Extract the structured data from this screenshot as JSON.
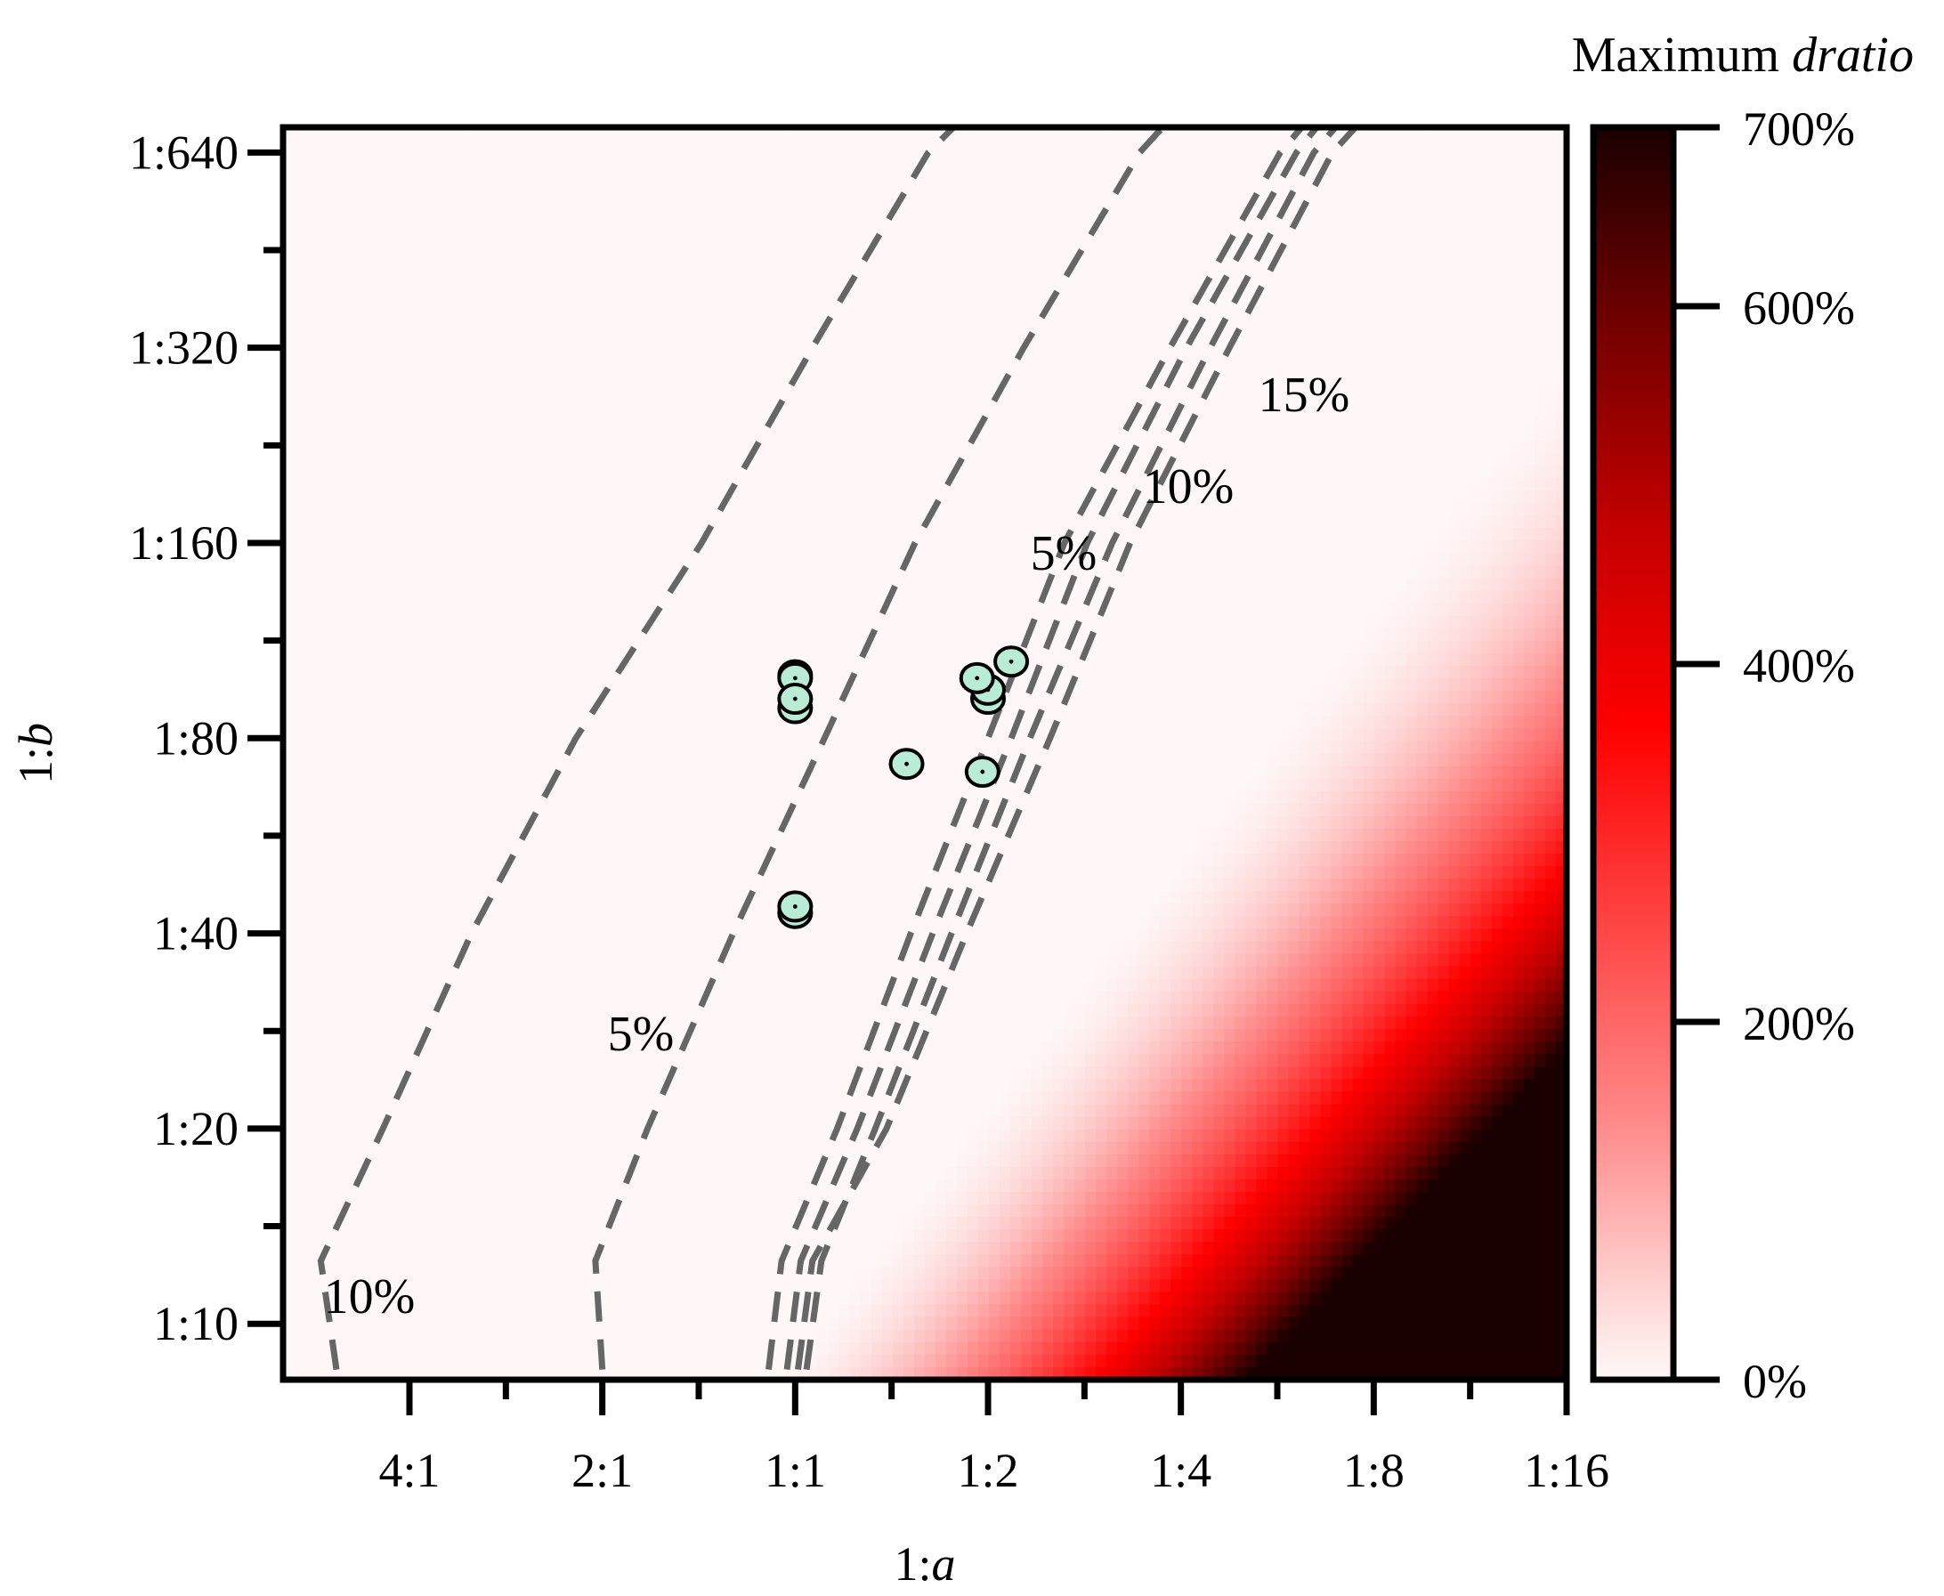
{
  "chart_data": {
    "type": "heatmap",
    "title": "",
    "xlabel": {
      "prefix": "1:",
      "var": "a"
    },
    "ylabel": {
      "prefix": "1:",
      "var": "b"
    },
    "x_scale": "log2",
    "y_scale": "log2",
    "x_ticks": [
      {
        "value": 4,
        "label": "4:1"
      },
      {
        "value": 2,
        "label": "2:1"
      },
      {
        "value": 1,
        "label": "1:1"
      },
      {
        "value": 0.5,
        "label": "1:2"
      },
      {
        "value": 0.25,
        "label": "1:4"
      },
      {
        "value": 0.125,
        "label": "1:8"
      },
      {
        "value": 0.0625,
        "label": "1:16"
      }
    ],
    "y_ticks": [
      {
        "value": 10,
        "label": "1:10"
      },
      {
        "value": 20,
        "label": "1:20"
      },
      {
        "value": 40,
        "label": "1:40"
      },
      {
        "value": 80,
        "label": "1:80"
      },
      {
        "value": 160,
        "label": "1:160"
      },
      {
        "value": 320,
        "label": "1:320"
      },
      {
        "value": 640,
        "label": "1:640"
      }
    ],
    "xlim": [
      6.3,
      0.0625
    ],
    "ylim": [
      8.2,
      700
    ],
    "colorbar": {
      "title_prefix": "Maximum ",
      "title_var": "dratio",
      "range": [
        0,
        700
      ],
      "ticks": [
        {
          "value": 0,
          "label": "0%"
        },
        {
          "value": 200,
          "label": "200%"
        },
        {
          "value": 400,
          "label": "400%"
        },
        {
          "value": 600,
          "label": "600%"
        },
        {
          "value": 700,
          "label": "700%"
        }
      ],
      "colors": [
        "#fff7f7",
        "#ffd9d9",
        "#ff8c8c",
        "#ff0000",
        "#c40000",
        "#6e0000",
        "#1a0000"
      ]
    },
    "contours": [
      {
        "label": "10%",
        "points": [
          [
            5.2,
            8.5
          ],
          [
            5.5,
            12.5
          ],
          [
            4.4,
            20
          ],
          [
            3.2,
            40
          ],
          [
            2.2,
            80
          ],
          [
            1.4,
            160
          ],
          [
            0.94,
            320
          ],
          [
            0.62,
            640
          ],
          [
            0.55,
            720
          ]
        ]
      },
      {
        "label": "5%",
        "points": [
          [
            2.0,
            8.5
          ],
          [
            2.05,
            12.5
          ],
          [
            1.7,
            20
          ],
          [
            1.25,
            40
          ],
          [
            0.9,
            80
          ],
          [
            0.65,
            160
          ],
          [
            0.44,
            320
          ],
          [
            0.29,
            640
          ],
          [
            0.26,
            720
          ]
        ]
      },
      {
        "label": "",
        "points": [
          [
            1.1,
            8.5
          ],
          [
            1.05,
            12.5
          ],
          [
            0.86,
            20
          ],
          [
            0.66,
            40
          ],
          [
            0.5,
            80
          ],
          [
            0.38,
            160
          ],
          [
            0.26,
            320
          ],
          [
            0.175,
            640
          ],
          [
            0.158,
            720
          ]
        ]
      },
      {
        "label": "5%",
        "points": [
          [
            1.03,
            8.5
          ],
          [
            0.98,
            12.5
          ],
          [
            0.8,
            20
          ],
          [
            0.61,
            40
          ],
          [
            0.46,
            80
          ],
          [
            0.35,
            160
          ],
          [
            0.245,
            320
          ],
          [
            0.165,
            640
          ],
          [
            0.15,
            720
          ]
        ]
      },
      {
        "label": "10%",
        "points": [
          [
            0.96,
            8.5
          ],
          [
            0.91,
            12.5
          ],
          [
            0.75,
            20
          ],
          [
            0.57,
            40
          ],
          [
            0.43,
            80
          ],
          [
            0.32,
            160
          ],
          [
            0.225,
            320
          ],
          [
            0.155,
            640
          ],
          [
            0.14,
            720
          ]
        ]
      },
      {
        "label": "15%",
        "points": [
          [
            0.99,
            8.5
          ],
          [
            0.94,
            12.5
          ],
          [
            0.72,
            20
          ],
          [
            0.54,
            40
          ],
          [
            0.4,
            80
          ],
          [
            0.3,
            160
          ],
          [
            0.21,
            320
          ],
          [
            0.145,
            640
          ],
          [
            0.13,
            720
          ]
        ]
      }
    ],
    "points": [
      [
        1.0,
        100
      ],
      [
        1.0,
        99
      ],
      [
        1.0,
        89
      ],
      [
        1.0,
        92
      ],
      [
        0.67,
        73
      ],
      [
        0.51,
        71
      ],
      [
        0.5,
        92
      ],
      [
        0.5,
        95
      ],
      [
        0.52,
        99
      ],
      [
        0.46,
        105
      ],
      [
        1.0,
        43
      ],
      [
        1.0,
        44
      ]
    ]
  }
}
